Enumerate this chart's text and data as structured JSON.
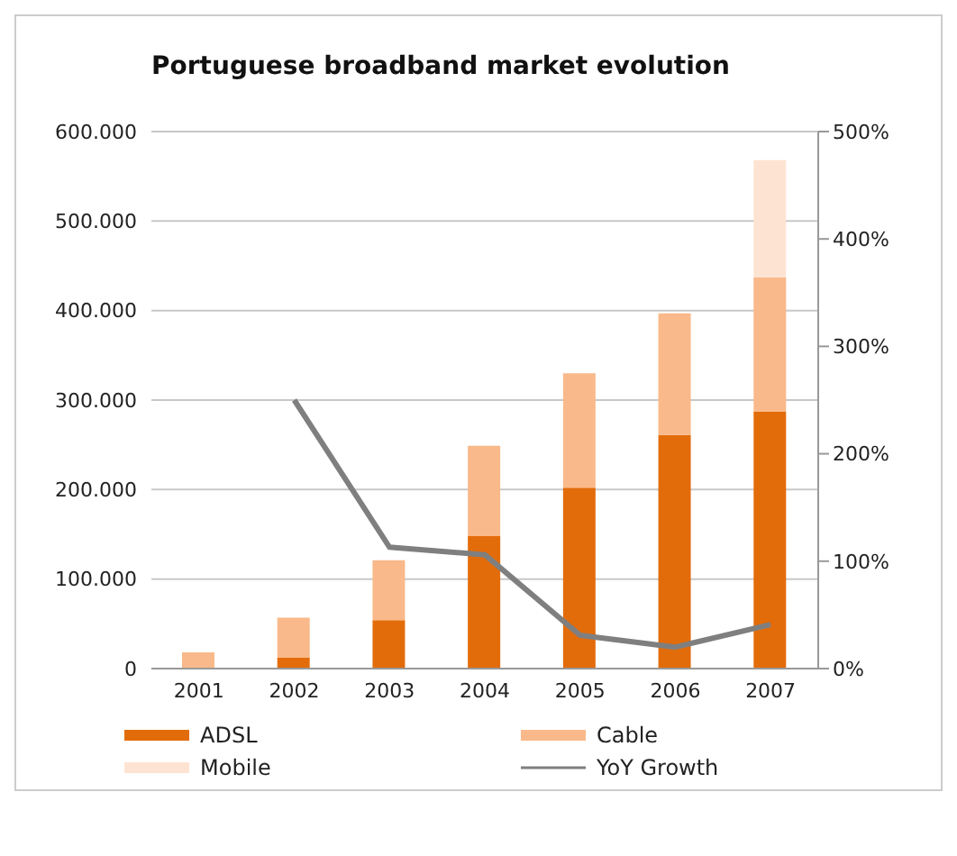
{
  "chart_data": {
    "type": "bar",
    "title": "Portuguese broadband market evolution",
    "categories": [
      "2001",
      "2002",
      "2003",
      "2004",
      "2005",
      "2006",
      "2007"
    ],
    "stacked": true,
    "series": [
      {
        "name": "ADSL",
        "color": "#e36c0a",
        "values": [
          0,
          12000,
          54000,
          148000,
          202000,
          261000,
          287000
        ]
      },
      {
        "name": "Cable",
        "color": "#f9b98a",
        "values": [
          18000,
          45000,
          67000,
          101000,
          128000,
          136000,
          150000
        ]
      },
      {
        "name": "Mobile",
        "color": "#fde4d2",
        "values": [
          null,
          null,
          null,
          null,
          null,
          null,
          131000
        ]
      },
      {
        "name": "YoY Growth",
        "type": "line",
        "axis": "y2",
        "color": "#7f7f7f",
        "values": [
          null,
          250,
          113,
          106,
          31,
          20,
          41
        ]
      }
    ],
    "ylim": [
      0,
      600000
    ],
    "yticks": [
      {
        "value": 0,
        "label": "0"
      },
      {
        "value": 100000,
        "label": "100.000"
      },
      {
        "value": 200000,
        "label": "200.000"
      },
      {
        "value": 300000,
        "label": "300.000"
      },
      {
        "value": 400000,
        "label": "400.000"
      },
      {
        "value": 500000,
        "label": "500.000"
      },
      {
        "value": 600000,
        "label": "600.000"
      }
    ],
    "y2lim": [
      0,
      500
    ],
    "y2ticks": [
      {
        "value": 0,
        "label": "0%"
      },
      {
        "value": 100,
        "label": "100%"
      },
      {
        "value": 200,
        "label": "200%"
      },
      {
        "value": 300,
        "label": "300%"
      },
      {
        "value": 400,
        "label": "400%"
      },
      {
        "value": 500,
        "label": "500%"
      }
    ],
    "grid": "y",
    "legend": "bottom",
    "marker": "none"
  }
}
